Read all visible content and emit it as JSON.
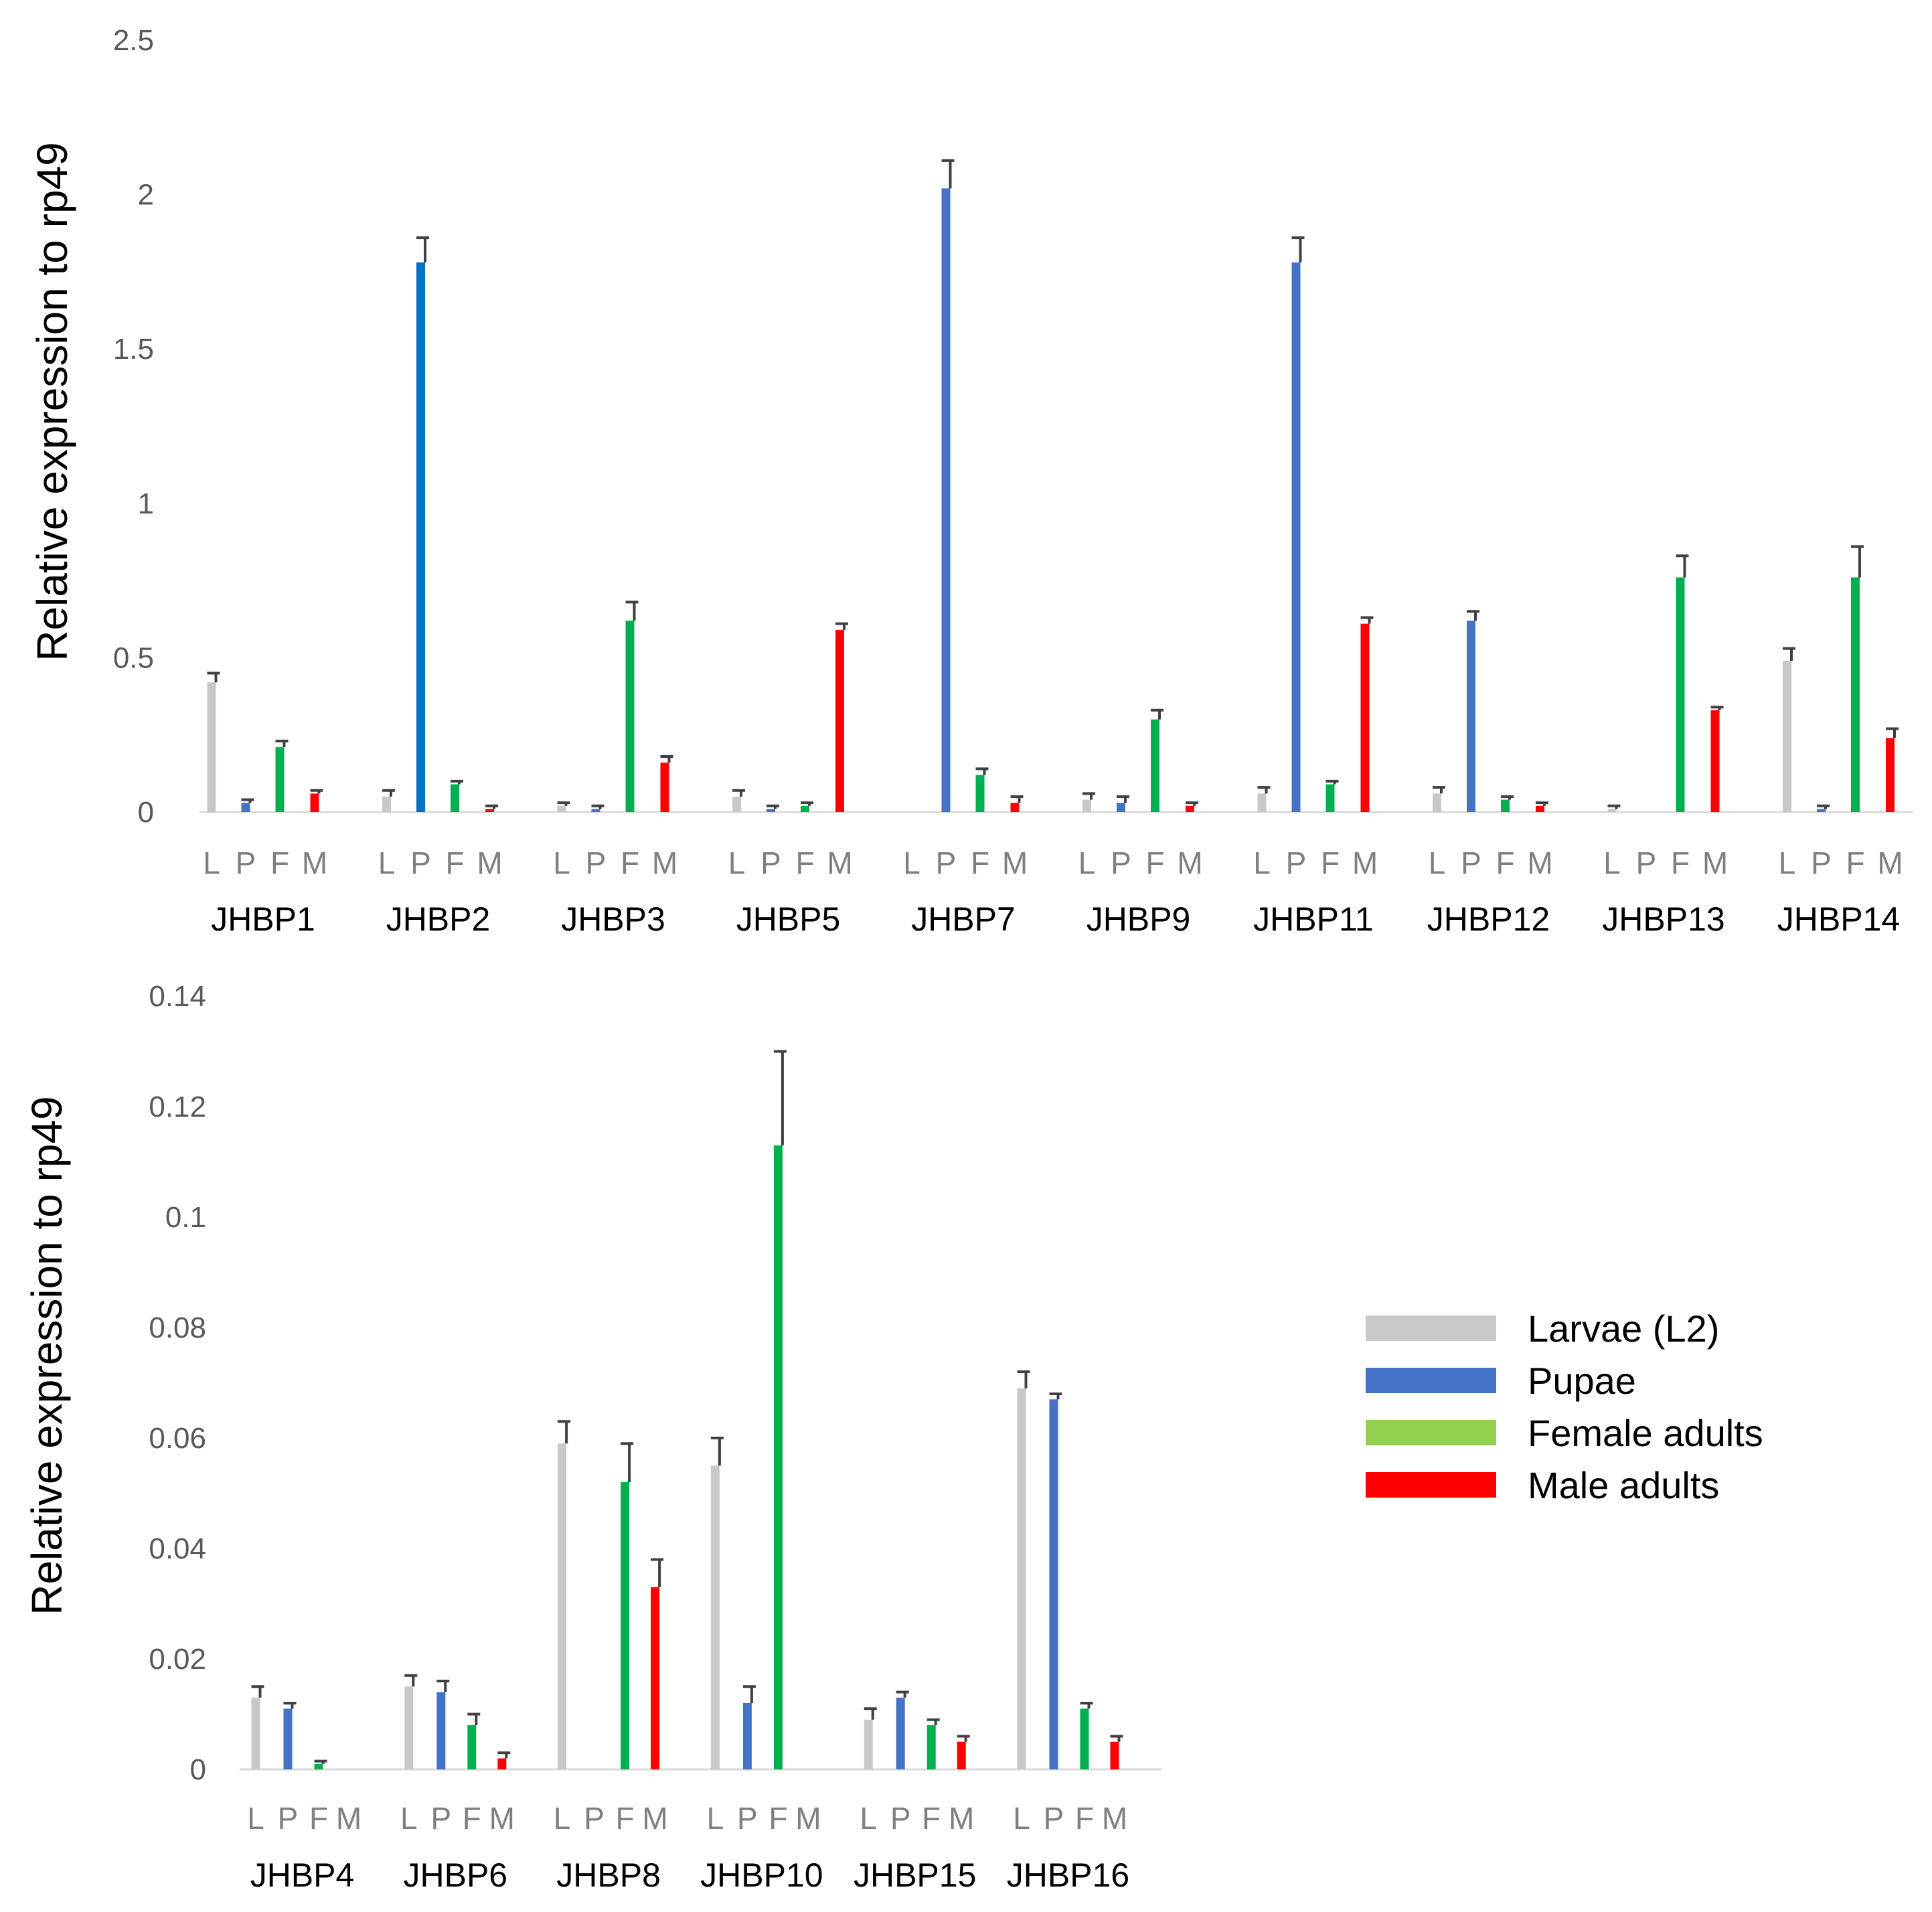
{
  "colors": {
    "larvae": "#c8c8c8",
    "pupae": "#4472c4",
    "pupae_bright": "#0070c0",
    "female": "#00b050",
    "male": "#ff0000",
    "legend_female": "#92d050"
  },
  "chart_data": [
    {
      "type": "bar",
      "title": "",
      "xlabel": "",
      "ylabel": "Relative expression to rp49",
      "ylim": [
        0,
        2.5
      ],
      "yticks": [
        "0",
        "0.5",
        "1",
        "1.5",
        "2",
        "2.5"
      ],
      "ytick_values": [
        0,
        0.5,
        1,
        1.5,
        2,
        2.5
      ],
      "grid": false,
      "legend": "none",
      "sub_labels": [
        "L",
        "P",
        "F",
        "M"
      ],
      "categories": [
        "JHBP1",
        "JHBP2",
        "JHBP3",
        "JHBP5",
        "JHBP7",
        "JHBP9",
        "JHBP11",
        "JHBP12",
        "JHBP13",
        "JHBP14"
      ],
      "series": [
        {
          "name": "Larvae (L2)",
          "values": [
            0.42,
            0.05,
            0.02,
            0.05,
            0,
            0.04,
            0.06,
            0.06,
            0.01,
            0.49
          ],
          "errors": [
            0.03,
            0.02,
            0.01,
            0.02,
            0,
            0.02,
            0.02,
            0.02,
            0.01,
            0.04
          ]
        },
        {
          "name": "Pupae",
          "values": [
            0.03,
            1.78,
            0.01,
            0.01,
            2.02,
            0.03,
            1.78,
            0.62,
            0,
            0.01
          ],
          "errors": [
            0.01,
            0.08,
            0.01,
            0.01,
            0.09,
            0.02,
            0.08,
            0.03,
            0,
            0.01
          ]
        },
        {
          "name": "Female adults",
          "values": [
            0.21,
            0.09,
            0.62,
            0.02,
            0.12,
            0.3,
            0.09,
            0.04,
            0.76,
            0.76
          ],
          "errors": [
            0.02,
            0.01,
            0.06,
            0.01,
            0.02,
            0.03,
            0.01,
            0.01,
            0.07,
            0.1
          ]
        },
        {
          "name": "Male adults",
          "values": [
            0.06,
            0.01,
            0.16,
            0.59,
            0.03,
            0.02,
            0.61,
            0.02,
            0.33,
            0.24
          ],
          "errors": [
            0.01,
            0.01,
            0.02,
            0.02,
            0.02,
            0.01,
            0.02,
            0.01,
            0.01,
            0.03
          ]
        }
      ]
    },
    {
      "type": "bar",
      "title": "",
      "xlabel": "",
      "ylabel": "Relative expression to rp49",
      "ylim": [
        0,
        0.14
      ],
      "yticks": [
        "0",
        "0.02",
        "0.04",
        "0.06",
        "0.08",
        "0.1",
        "0.12",
        "0.14"
      ],
      "ytick_values": [
        0,
        0.02,
        0.04,
        0.06,
        0.08,
        0.1,
        0.12,
        0.14
      ],
      "grid": false,
      "legend": "right",
      "sub_labels": [
        "L",
        "P",
        "F",
        "M"
      ],
      "categories": [
        "JHBP4",
        "JHBP6",
        "JHBP8",
        "JHBP10",
        "JHBP15",
        "JHBP16"
      ],
      "series": [
        {
          "name": "Larvae (L2)",
          "values": [
            0.013,
            0.015,
            0.059,
            0.055,
            0.009,
            0.069
          ],
          "errors": [
            0.002,
            0.002,
            0.004,
            0.005,
            0.002,
            0.003
          ]
        },
        {
          "name": "Pupae",
          "values": [
            0.011,
            0.014,
            0,
            0.012,
            0.013,
            0.067
          ],
          "errors": [
            0.001,
            0.002,
            0,
            0.003,
            0.001,
            0.001
          ]
        },
        {
          "name": "Female adults",
          "values": [
            0.001,
            0.008,
            0.052,
            0.113,
            0.008,
            0.011
          ],
          "errors": [
            0.0005,
            0.002,
            0.007,
            0.017,
            0.001,
            0.001
          ]
        },
        {
          "name": "Male adults",
          "values": [
            0,
            0.002,
            0.033,
            0,
            0.005,
            0.005
          ],
          "errors": [
            0,
            0.001,
            0.005,
            0,
            0.001,
            0.001
          ]
        }
      ]
    }
  ],
  "legend": {
    "items": [
      {
        "label": "Larvae (L2)",
        "color": "#c8c8c8"
      },
      {
        "label": "Pupae",
        "color": "#4472c4"
      },
      {
        "label": "Female adults",
        "color": "#92d050"
      },
      {
        "label": "Male adults",
        "color": "#ff0000"
      }
    ]
  }
}
